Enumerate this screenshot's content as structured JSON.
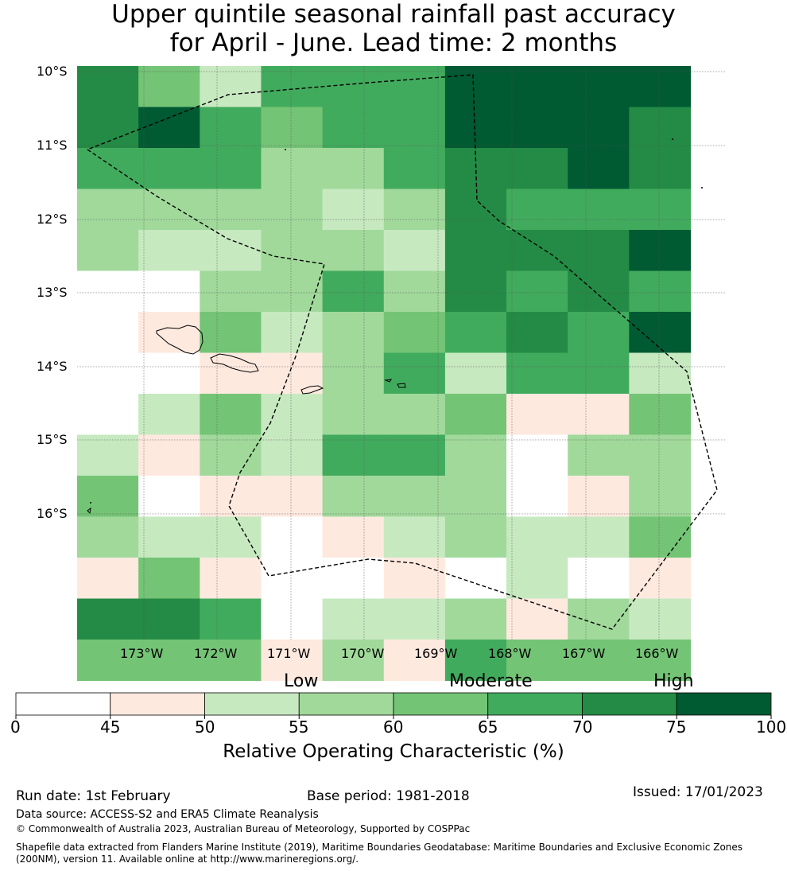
{
  "title": {
    "line1": "Upper quintile seasonal rainfall past accuracy",
    "line2": "for April - June. Lead time: 2 months"
  },
  "map": {
    "lat_labels": [
      "10°S",
      "11°S",
      "12°S",
      "13°S",
      "14°S",
      "15°S",
      "16°S"
    ],
    "lon_labels": [
      "173°W",
      "172°W",
      "171°W",
      "170°W",
      "169°W",
      "168°W",
      "167°W",
      "166°W"
    ],
    "grid_classes": [
      [
        6,
        4,
        2,
        5,
        5,
        5,
        7,
        7,
        7,
        7
      ],
      [
        6,
        7,
        5,
        4,
        5,
        5,
        7,
        7,
        7,
        6
      ],
      [
        5,
        5,
        5,
        3,
        3,
        5,
        6,
        6,
        7,
        6
      ],
      [
        3,
        3,
        3,
        3,
        2,
        3,
        6,
        5,
        5,
        5
      ],
      [
        3,
        2,
        2,
        3,
        3,
        2,
        6,
        6,
        6,
        7
      ],
      [
        0,
        0,
        3,
        3,
        5,
        3,
        6,
        5,
        6,
        5
      ],
      [
        0,
        1,
        4,
        2,
        3,
        4,
        5,
        6,
        5,
        7
      ],
      [
        0,
        0,
        1,
        1,
        3,
        5,
        2,
        5,
        5,
        2
      ],
      [
        0,
        2,
        4,
        2,
        3,
        3,
        4,
        1,
        1,
        4
      ],
      [
        2,
        1,
        3,
        2,
        5,
        5,
        3,
        0,
        3,
        3
      ],
      [
        4,
        0,
        1,
        1,
        3,
        3,
        3,
        0,
        1,
        3
      ],
      [
        3,
        2,
        2,
        0,
        1,
        2,
        3,
        2,
        2,
        4
      ],
      [
        1,
        4,
        1,
        0,
        0,
        1,
        0,
        2,
        0,
        1
      ],
      [
        6,
        6,
        5,
        0,
        2,
        2,
        3,
        1,
        3,
        2
      ],
      [
        4,
        4,
        4,
        1,
        3,
        1,
        5,
        4,
        4,
        4
      ]
    ]
  },
  "colorbar": {
    "colors": [
      "#ffffff",
      "#fee9df",
      "#c7e9c0",
      "#a1d99b",
      "#74c476",
      "#41ab5d",
      "#238b45",
      "#005a32"
    ],
    "ticks": [
      "0",
      "45",
      "50",
      "55",
      "60",
      "65",
      "70",
      "75",
      "100"
    ],
    "categories": [
      "Low",
      "Moderate",
      "High"
    ],
    "label": "Relative Operating Characteristic (%)"
  },
  "footer": {
    "run_date": "Run date: 1st February",
    "base_period": "Base period: 1981-2018",
    "issued": "Issued: 17/01/2023",
    "data_source": "Data source: ACCESS-S2 and ERA5 Climate Reanalysis",
    "copyright": "© Commonwealth of Australia 2023, Australian Bureau of Meteorology, Supported by COSPPac",
    "shapefile": "Shapefile data extracted from Flanders Marine Institute (2019), Maritime Boundaries Geodatabase: Maritime Boundaries and Exclusive Economic Zones (200NM), version 11. Available online at http://www.marineregions.org/."
  }
}
